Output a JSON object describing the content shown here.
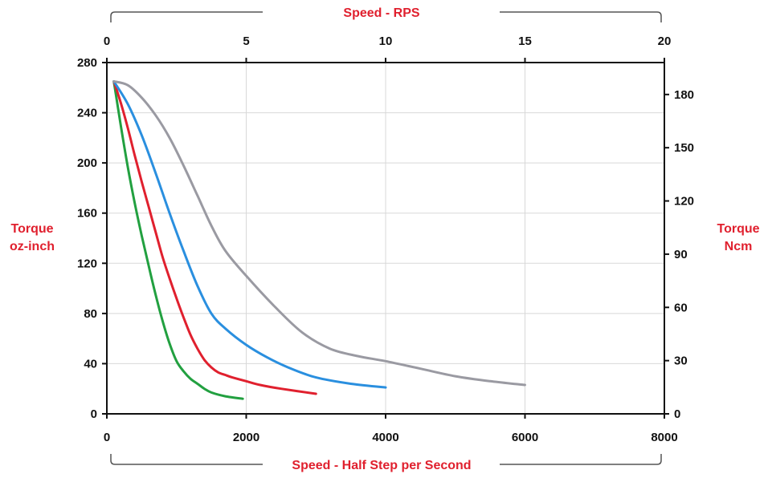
{
  "chart_data": {
    "type": "line",
    "title": "",
    "xlabel": "Speed - Half Step per Second",
    "x2label": "Speed - RPS",
    "ylabel": [
      "Torque",
      "oz-inch"
    ],
    "y2label": [
      "Torque",
      "Ncm"
    ],
    "xlim": [
      0,
      8000
    ],
    "x2lim": [
      0,
      20
    ],
    "ylim": [
      0,
      280
    ],
    "y2lim": [
      0,
      198
    ],
    "x_ticks": [
      "0",
      "2000",
      "4000",
      "6000",
      "8000"
    ],
    "x2_ticks": [
      "0",
      "5",
      "10",
      "15",
      "20"
    ],
    "y_ticks": [
      "0",
      "40",
      "80",
      "120",
      "160",
      "200",
      "240",
      "280"
    ],
    "y2_ticks": [
      "0",
      "30",
      "60",
      "90",
      "120",
      "150",
      "180"
    ],
    "grid": true,
    "series": [
      {
        "color": "#22a040",
        "x": [
          100,
          200,
          300,
          400,
          500,
          600,
          700,
          800,
          900,
          1000,
          1100,
          1200,
          1300,
          1400,
          1500,
          1700,
          1950
        ],
        "y": [
          265,
          230,
          197,
          168,
          142,
          118,
          95,
          74,
          56,
          42,
          34,
          28,
          24,
          20,
          17,
          14,
          12
        ]
      },
      {
        "color": "#e0202e",
        "x": [
          100,
          200,
          300,
          400,
          500,
          600,
          700,
          800,
          900,
          1000,
          1100,
          1200,
          1300,
          1400,
          1500,
          1600,
          1700,
          1800,
          2000,
          2200,
          2500,
          3000
        ],
        "y": [
          265,
          248,
          228,
          206,
          185,
          165,
          145,
          125,
          108,
          92,
          77,
          63,
          52,
          43,
          37,
          33,
          31,
          29,
          26,
          23,
          20,
          16
        ]
      },
      {
        "color": "#2a8fdf",
        "x": [
          100,
          300,
          500,
          700,
          900,
          1100,
          1300,
          1500,
          1700,
          2000,
          2300,
          2600,
          3000,
          3500,
          4000
        ],
        "y": [
          265,
          247,
          222,
          192,
          160,
          130,
          102,
          80,
          68,
          55,
          45,
          37,
          29,
          24,
          21
        ]
      },
      {
        "color": "#9a9aa2",
        "x": [
          100,
          300,
          500,
          700,
          900,
          1100,
          1300,
          1500,
          1700,
          2000,
          2400,
          2800,
          3200,
          3600,
          4000,
          4500,
          5000,
          5500,
          6000
        ],
        "y": [
          265,
          262,
          252,
          238,
          220,
          198,
          174,
          150,
          130,
          110,
          86,
          65,
          52,
          46,
          42,
          36,
          30,
          26,
          23
        ]
      }
    ]
  }
}
